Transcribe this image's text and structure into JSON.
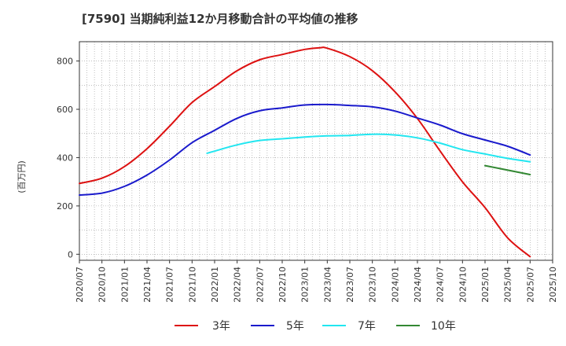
{
  "title": "[7590]  当期純利益12か月移動合計の平均値の推移",
  "ylabel": "(百万円)",
  "chart_data": {
    "type": "line",
    "title": "[7590]  当期純利益12か月移動合計の平均値の推移",
    "ylabel": "(百万円)",
    "xlabel": "",
    "ylim": [
      -25,
      880
    ],
    "yticks": [
      0,
      200,
      400,
      600,
      800
    ],
    "x_ticks": [
      "2020/07",
      "2020/10",
      "2021/01",
      "2021/04",
      "2021/07",
      "2021/10",
      "2022/01",
      "2022/04",
      "2022/07",
      "2022/10",
      "2023/01",
      "2023/04",
      "2023/07",
      "2023/10",
      "2024/01",
      "2024/04",
      "2024/07",
      "2024/10",
      "2025/01",
      "2025/04",
      "2025/07",
      "2025/10"
    ],
    "grid": true,
    "legend_position": "bottom",
    "series": [
      {
        "name": "3年",
        "color": "#dd1111",
        "x": [
          "2020/07",
          "2020/10",
          "2021/01",
          "2021/04",
          "2021/07",
          "2021/10",
          "2022/01",
          "2022/04",
          "2022/07",
          "2022/10",
          "2023/01",
          "2023/03",
          "2023/04",
          "2023/07",
          "2023/10",
          "2024/01",
          "2024/04",
          "2024/07",
          "2024/10",
          "2025/01",
          "2025/04",
          "2025/07"
        ],
        "y": [
          293,
          315,
          363,
          437,
          530,
          628,
          694,
          760,
          805,
          827,
          848,
          855,
          853,
          818,
          760,
          673,
          562,
          428,
          300,
          193,
          68,
          -10
        ]
      },
      {
        "name": "5年",
        "color": "#1a1acc",
        "x": [
          "2020/07",
          "2020/10",
          "2021/01",
          "2021/04",
          "2021/07",
          "2021/10",
          "2022/01",
          "2022/04",
          "2022/07",
          "2022/10",
          "2023/01",
          "2023/04",
          "2023/07",
          "2023/10",
          "2024/01",
          "2024/04",
          "2024/07",
          "2024/10",
          "2025/01",
          "2025/04",
          "2025/07"
        ],
        "y": [
          245,
          253,
          281,
          328,
          390,
          462,
          513,
          563,
          594,
          606,
          618,
          620,
          616,
          610,
          593,
          564,
          535,
          499,
          473,
          447,
          411
        ]
      },
      {
        "name": "7年",
        "color": "#22e6f0",
        "x": [
          "2021/12",
          "2022/01",
          "2022/04",
          "2022/07",
          "2022/10",
          "2023/01",
          "2023/04",
          "2023/07",
          "2023/10",
          "2024/01",
          "2024/04",
          "2024/07",
          "2024/10",
          "2025/01",
          "2025/04",
          "2025/07"
        ],
        "y": [
          418,
          427,
          453,
          471,
          478,
          485,
          490,
          492,
          497,
          494,
          482,
          460,
          433,
          415,
          397,
          383
        ]
      },
      {
        "name": "10年",
        "color": "#338833",
        "x": [
          "2025/01",
          "2025/07"
        ],
        "y": [
          367,
          330
        ]
      }
    ]
  }
}
